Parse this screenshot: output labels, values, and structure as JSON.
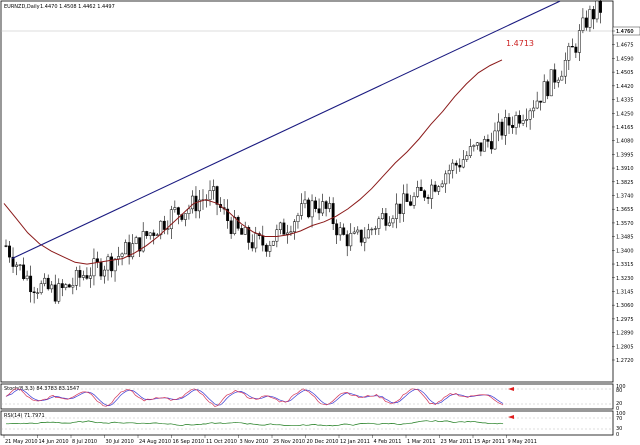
{
  "header": {
    "title": "EURNZD,Daily",
    "quote": "1.4470 1.4508 1.4462 1.4497"
  },
  "callout_label": "1.4713",
  "current_price_badge": "1.4760",
  "colors": {
    "candle": "#000000",
    "trendline": "#1a1a80",
    "moving_average": "#8b1a1a",
    "stoch_main": "#d4365a",
    "stoch_signal": "#3b3bd4",
    "rsi": "#1a7a1a",
    "grid": "#cccccc",
    "arrow": "#e01e1e"
  },
  "price_axis": {
    "labels": [
      "1.4760",
      "1.4675",
      "1.4590",
      "1.4505",
      "1.4420",
      "1.4335",
      "1.4250",
      "1.4165",
      "1.4080",
      "1.3995",
      "1.3910",
      "1.3825",
      "1.3740",
      "1.3655",
      "1.3570",
      "1.3485",
      "1.3400",
      "1.3315",
      "1.3230",
      "1.3145",
      "1.3060",
      "1.2975",
      "1.2890",
      "1.2805",
      "1.2720"
    ]
  },
  "time_axis": {
    "labels": [
      "21 May 2010",
      "14 Jun 2010",
      "8 Jul 2010",
      "30 Jul 2010",
      "24 Aug 2010",
      "16 Sep 2010",
      "11 Oct 2010",
      "3 Nov 2010",
      "25 Nov 2010",
      "20 Dec 2010",
      "12 Jan 2011",
      "4 Feb 2011",
      "1 Mar 2011",
      "23 Mar 2011",
      "15 Apr 2011",
      "9 May 2011"
    ]
  },
  "stochastic": {
    "label": "Stoch(8,3,3) 84.3783 83.1547",
    "levels": [
      "100",
      "80",
      "20",
      "0"
    ]
  },
  "rsi": {
    "label": "RSI(14) 71.7971",
    "levels": [
      "100",
      "70",
      "30",
      "0"
    ]
  },
  "chart_data": {
    "type": "candlestick",
    "symbol": "EURNZD",
    "timeframe": "Daily",
    "ylim": [
      1.272,
      1.4775
    ],
    "close_path": [
      1.345,
      1.3335,
      1.3245,
      1.3215,
      1.3195,
      1.3235,
      1.3295,
      1.333,
      1.3365,
      1.341,
      1.345,
      1.3512,
      1.357,
      1.363,
      1.365,
      1.37,
      1.372,
      1.3605,
      1.352,
      1.347,
      1.3462,
      1.351,
      1.358,
      1.364,
      1.368,
      1.363,
      1.35,
      1.348,
      1.352,
      1.36,
      1.365,
      1.368,
      1.372,
      1.378,
      1.385,
      1.39,
      1.396,
      1.4,
      1.406,
      1.412,
      1.418,
      1.424,
      1.433,
      1.442,
      1.453,
      1.469,
      1.474
    ],
    "moving_average": [
      1.368,
      1.36,
      1.352,
      1.346,
      1.342,
      1.339,
      1.336,
      1.335,
      1.336,
      1.337,
      1.338,
      1.341,
      1.345,
      1.35,
      1.356,
      1.362,
      1.368,
      1.37,
      1.368,
      1.363,
      1.357,
      1.3525,
      1.35,
      1.35,
      1.351,
      1.353,
      1.356,
      1.358,
      1.361,
      1.365,
      1.37,
      1.376,
      1.383,
      1.39,
      1.396,
      1.403,
      1.411,
      1.418,
      1.426,
      1.433,
      1.439,
      1.443,
      1.446
    ],
    "trendline": {
      "start_price": 1.338,
      "end_price": 1.478
    }
  }
}
